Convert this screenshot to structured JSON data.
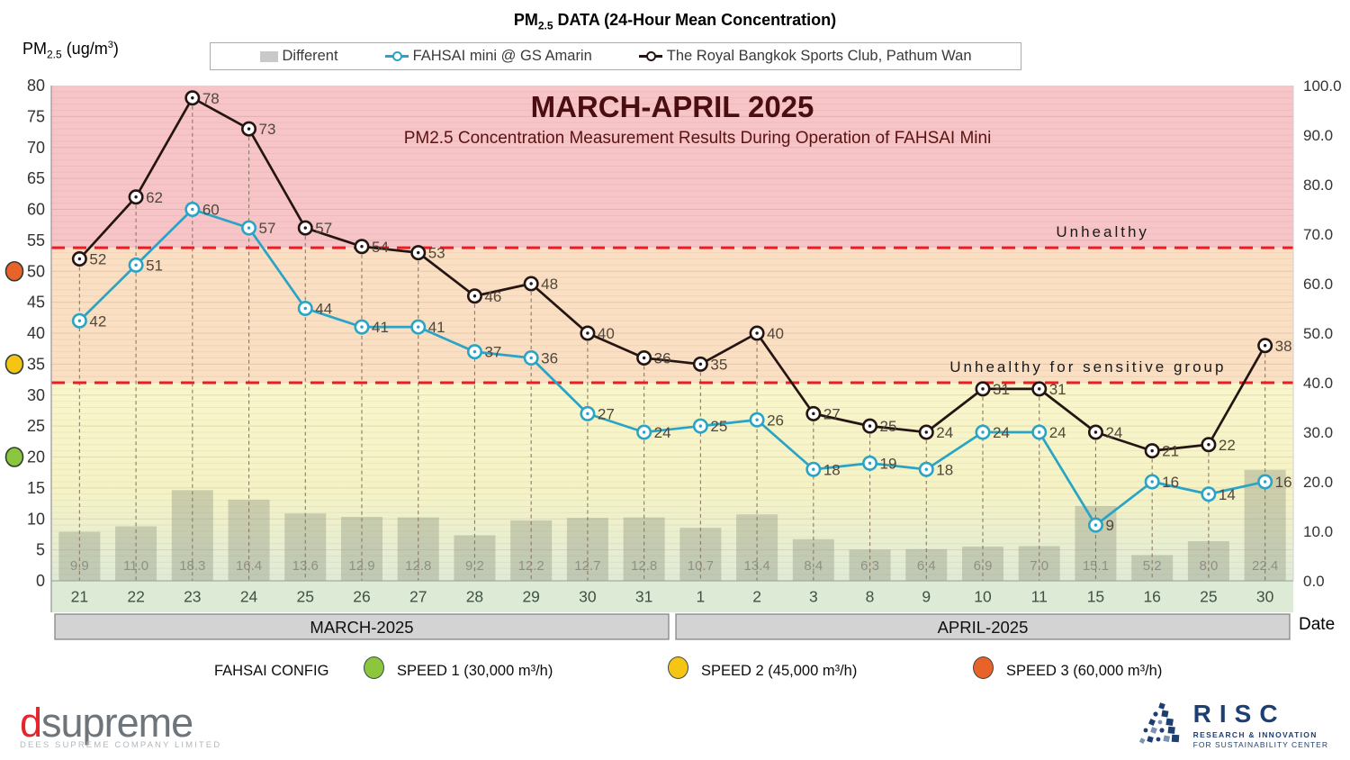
{
  "page": {
    "title": {
      "prefix": "PM",
      "sub": "2.5",
      "rest": " DATA (24-Hour Mean Concentration)"
    },
    "y_axis_title": {
      "prefix": "PM",
      "sub": "2.5",
      "mid": " (ug/m",
      "sup": "3",
      "end": ")"
    }
  },
  "top_legend": {
    "items": [
      {
        "label": "Different",
        "color": "#c9c9c9"
      },
      {
        "label": "FAHSAI mini @ GS Amarin",
        "color": "#2aa4c5"
      },
      {
        "label": "The Royal Bangkok Sports Club, Pathum Wan",
        "color": "#241512"
      }
    ]
  },
  "config_legend": {
    "title": "FAHSAI CONFIG",
    "items": [
      {
        "label": "SPEED 1 (30,000 m³/h)",
        "color": "#8cc63e"
      },
      {
        "label": "SPEED 2 (45,000 m³/h)",
        "color": "#f6c513"
      },
      {
        "label": "SPEED 3 (60,000 m³/h)",
        "color": "#e8632a"
      }
    ]
  },
  "footer": {
    "dsupreme": {
      "first_letter": "d",
      "rest": "supreme",
      "tagline": "DEES SUPREME COMPANY LIMITED"
    },
    "risc": {
      "name": "RISC",
      "line1": "RESEARCH & INNOVATION",
      "line2": "FOR SUSTAINABILITY CENTER"
    }
  },
  "chart_data": {
    "type": "combo bar+line",
    "inner_title": "MARCH-APRIL 2025",
    "inner_subtitle": "PM2.5 Concentration Measurement Results During Operation of FAHSAI Mini",
    "title_color": "#4a0e10",
    "subtitle_color": "#5a1313",
    "x_axis_label": "Date",
    "categories": [
      "21",
      "22",
      "23",
      "24",
      "25",
      "26",
      "27",
      "28",
      "29",
      "30",
      "31",
      "1",
      "2",
      "3",
      "8",
      "9",
      "10",
      "11",
      "15",
      "16",
      "25",
      "30"
    ],
    "month_bands": [
      {
        "label": "MARCH-2025",
        "start": 0,
        "end": 10
      },
      {
        "label": "APRIL-2025",
        "start": 11,
        "end": 21
      }
    ],
    "left_axis": {
      "min": 0,
      "max": 80,
      "step": 5
    },
    "right_axis": {
      "min": 0,
      "max": 100,
      "step": 10
    },
    "series": [
      {
        "name": "Different",
        "type": "bar",
        "axis": "right",
        "color": "rgba(148,156,134,0.42)",
        "label_color": "#8d9184",
        "values": [
          9.9,
          11.0,
          18.3,
          16.4,
          13.6,
          12.9,
          12.8,
          9.2,
          12.2,
          12.7,
          12.8,
          10.7,
          13.4,
          8.4,
          6.3,
          6.4,
          6.9,
          7.0,
          15.1,
          5.2,
          8.0,
          22.4
        ]
      },
      {
        "name": "FAHSAI mini @ GS Amarin",
        "type": "line",
        "axis": "left",
        "color": "#2aa4c5",
        "values": [
          42,
          51,
          60,
          57,
          44,
          41,
          41,
          37,
          36,
          27,
          24,
          25,
          26,
          18,
          19,
          18,
          24,
          24,
          9,
          16,
          14,
          16
        ]
      },
      {
        "name": "The Royal Bangkok Sports Club, Pathum Wan",
        "type": "line",
        "axis": "left",
        "color": "#241512",
        "values": [
          52,
          62,
          78,
          73,
          57,
          54,
          53,
          46,
          48,
          40,
          36,
          35,
          40,
          27,
          25,
          24,
          31,
          31,
          24,
          21,
          22,
          38
        ]
      }
    ],
    "thresholds": [
      {
        "label": "Unhealthy",
        "value": 53.8,
        "color": "#ed1c24"
      },
      {
        "label": "Unhealthy for sensitive group",
        "value": 32,
        "color": "#ed1c24"
      }
    ],
    "speed_markers": [
      {
        "value": 50,
        "color": "#e8632a"
      },
      {
        "value": 35,
        "color": "#f6c513"
      },
      {
        "value": 20,
        "color": "#8cc63e"
      }
    ],
    "bands": {
      "red": "#f7c5c7",
      "orange": "#fadfc3",
      "yellow": "#f8f6ca",
      "green": "#dfead7"
    },
    "value_label_color": "#51463a",
    "bar_label_color": "#8d9184",
    "date_label_color": "#3f5244"
  }
}
